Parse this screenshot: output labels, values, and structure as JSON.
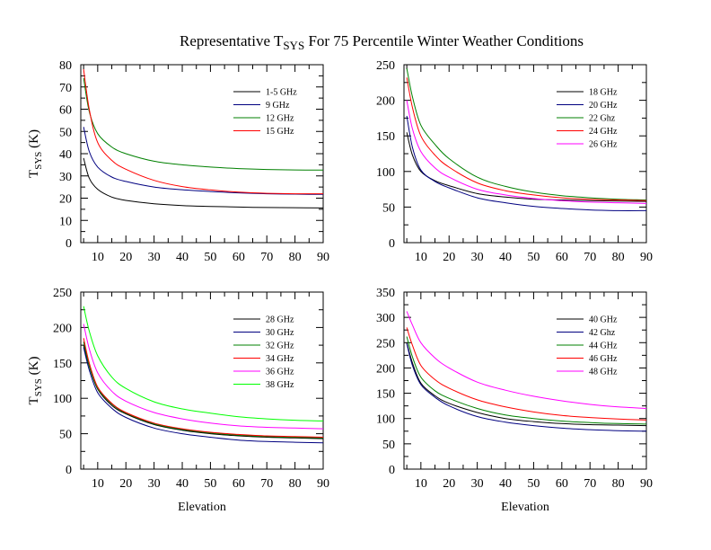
{
  "title": {
    "main": "Representative T",
    "sub": "SYS",
    "rest": " For 75 Percentile Winter Weather Conditions"
  },
  "chart_data": [
    {
      "type": "line",
      "ylabel": {
        "main": "T",
        "sub": "SYS",
        "rest": " (K)"
      },
      "xlabel": "",
      "xlim": [
        4,
        90
      ],
      "ylim": [
        0,
        80
      ],
      "xticks": [
        10,
        20,
        30,
        40,
        50,
        60,
        70,
        80,
        90
      ],
      "yticks": [
        0,
        10,
        20,
        30,
        40,
        50,
        60,
        70,
        80
      ],
      "legend_position": "top-right",
      "series": [
        {
          "name": "1-5 GHz",
          "color": "#000000",
          "x": [
            5,
            7,
            10,
            15,
            20,
            30,
            40,
            50,
            60,
            70,
            80,
            90
          ],
          "values": [
            38,
            29,
            24,
            20.5,
            19,
            17.5,
            16.7,
            16.3,
            16,
            15.8,
            15.7,
            15.6
          ]
        },
        {
          "name": "9 GHz",
          "color": "#000080",
          "x": [
            5,
            7,
            10,
            15,
            20,
            30,
            40,
            50,
            60,
            70,
            80,
            90
          ],
          "values": [
            52,
            41,
            34,
            29.5,
            27.5,
            25,
            23.8,
            23,
            22.4,
            22,
            21.8,
            21.7
          ]
        },
        {
          "name": "12 GHz",
          "color": "#008000",
          "x": [
            5,
            7,
            10,
            15,
            20,
            30,
            40,
            50,
            60,
            70,
            80,
            90
          ],
          "values": [
            74,
            59,
            49,
            43,
            40,
            36.6,
            35,
            34,
            33.3,
            32.9,
            32.7,
            32.6
          ]
        },
        {
          "name": "15 GHz",
          "color": "#ff0000",
          "x": [
            5,
            7,
            10,
            15,
            20,
            30,
            40,
            50,
            60,
            70,
            80,
            90
          ],
          "values": [
            78,
            60,
            45,
            37,
            33,
            28,
            25.2,
            23.7,
            22.7,
            22.2,
            22,
            22
          ]
        }
      ]
    },
    {
      "type": "line",
      "ylabel": {
        "main": "",
        "sub": "",
        "rest": ""
      },
      "xlabel": "",
      "xlim": [
        4,
        90
      ],
      "ylim": [
        0,
        250
      ],
      "xticks": [
        10,
        20,
        30,
        40,
        50,
        60,
        70,
        80,
        90
      ],
      "yticks": [
        0,
        50,
        100,
        150,
        200,
        250
      ],
      "legend_position": "top-right",
      "series": [
        {
          "name": "18 GHz",
          "color": "#000000",
          "x": [
            5,
            7,
            10,
            15,
            20,
            30,
            40,
            50,
            60,
            70,
            80,
            90
          ],
          "values": [
            155,
            123,
            100,
            87,
            80,
            69,
            64,
            61,
            60,
            59,
            58.5,
            58
          ]
        },
        {
          "name": "20 GHz",
          "color": "#000080",
          "x": [
            5,
            7,
            10,
            15,
            20,
            30,
            40,
            50,
            60,
            70,
            80,
            90
          ],
          "values": [
            178,
            134,
            102,
            86,
            77,
            63,
            56,
            51,
            48,
            46,
            45,
            45
          ]
        },
        {
          "name": "22 Ghz",
          "color": "#008000",
          "x": [
            5,
            7,
            10,
            15,
            20,
            30,
            40,
            50,
            60,
            70,
            80,
            90
          ],
          "values": [
            245,
            205,
            165,
            138,
            118,
            92,
            79,
            71,
            66,
            63,
            61,
            60
          ]
        },
        {
          "name": "24 GHz",
          "color": "#ff0000",
          "x": [
            5,
            7,
            10,
            15,
            20,
            30,
            40,
            50,
            60,
            70,
            80,
            90
          ],
          "values": [
            232,
            190,
            150,
            123,
            106,
            84,
            73,
            67,
            63,
            61,
            60,
            59
          ]
        },
        {
          "name": "26 GHz",
          "color": "#ff00ff",
          "x": [
            5,
            7,
            10,
            15,
            20,
            30,
            40,
            50,
            60,
            70,
            80,
            90
          ],
          "values": [
            200,
            160,
            128,
            105,
            92,
            75,
            67,
            62,
            59,
            57,
            56,
            55
          ]
        }
      ]
    },
    {
      "type": "line",
      "ylabel": {
        "main": "T",
        "sub": "SYS",
        "rest": " (K)"
      },
      "xlabel": "Elevation",
      "xlim": [
        4,
        90
      ],
      "ylim": [
        0,
        250
      ],
      "xticks": [
        10,
        20,
        30,
        40,
        50,
        60,
        70,
        80,
        90
      ],
      "yticks": [
        0,
        50,
        100,
        150,
        200,
        250
      ],
      "legend_position": "top-right",
      "series": [
        {
          "name": "28 GHz",
          "color": "#000000",
          "x": [
            5,
            7,
            10,
            15,
            20,
            30,
            40,
            50,
            60,
            70,
            80,
            90
          ],
          "values": [
            175,
            145,
            113,
            90,
            78,
            63,
            55,
            50,
            47,
            45,
            44,
            43
          ]
        },
        {
          "name": "30 GHz",
          "color": "#000080",
          "x": [
            5,
            7,
            10,
            15,
            20,
            30,
            40,
            50,
            60,
            70,
            80,
            90
          ],
          "values": [
            172,
            140,
            108,
            86,
            73,
            58,
            50,
            45,
            41,
            39,
            38,
            37
          ]
        },
        {
          "name": "32 GHz",
          "color": "#008000",
          "x": [
            5,
            7,
            10,
            15,
            20,
            30,
            40,
            50,
            60,
            70,
            80,
            90
          ],
          "values": [
            180,
            146,
            114,
            92,
            79,
            64,
            56,
            51,
            48,
            46,
            45,
            44
          ]
        },
        {
          "name": "34 GHz",
          "color": "#ff0000",
          "x": [
            5,
            7,
            10,
            15,
            20,
            30,
            40,
            50,
            60,
            70,
            80,
            90
          ],
          "values": [
            185,
            150,
            116,
            93,
            80,
            65,
            57,
            52,
            49,
            47,
            46,
            45
          ]
        },
        {
          "name": "36 GHz",
          "color": "#ff00ff",
          "x": [
            5,
            7,
            10,
            15,
            20,
            30,
            40,
            50,
            60,
            70,
            80,
            90
          ],
          "values": [
            205,
            170,
            136,
            110,
            96,
            80,
            71,
            65,
            61,
            59,
            58,
            57
          ]
        },
        {
          "name": "38 GHz",
          "color": "#00ff00",
          "x": [
            5,
            7,
            10,
            15,
            20,
            30,
            40,
            50,
            60,
            70,
            80,
            90
          ],
          "values": [
            230,
            195,
            160,
            130,
            114,
            95,
            85,
            79,
            74,
            71,
            69,
            68
          ]
        }
      ]
    },
    {
      "type": "line",
      "ylabel": {
        "main": "",
        "sub": "",
        "rest": ""
      },
      "xlabel": "Elevation",
      "xlim": [
        4,
        90
      ],
      "ylim": [
        0,
        350
      ],
      "xticks": [
        10,
        20,
        30,
        40,
        50,
        60,
        70,
        80,
        90
      ],
      "yticks": [
        0,
        50,
        100,
        150,
        200,
        250,
        300,
        350
      ],
      "legend_position": "top-right",
      "series": [
        {
          "name": "40 GHz",
          "color": "#000000",
          "x": [
            5,
            7,
            10,
            15,
            20,
            30,
            40,
            50,
            60,
            70,
            80,
            90
          ],
          "values": [
            250,
            210,
            170,
            145,
            130,
            112,
            100,
            94,
            90,
            88,
            87,
            86
          ]
        },
        {
          "name": "42 Ghz",
          "color": "#000080",
          "x": [
            5,
            7,
            10,
            15,
            20,
            30,
            40,
            50,
            60,
            70,
            80,
            90
          ],
          "values": [
            248,
            205,
            167,
            142,
            125,
            104,
            93,
            86,
            81,
            78,
            76,
            75
          ]
        },
        {
          "name": "44 GHz",
          "color": "#008000",
          "x": [
            5,
            7,
            10,
            15,
            20,
            30,
            40,
            50,
            60,
            70,
            80,
            90
          ],
          "values": [
            262,
            222,
            182,
            155,
            140,
            120,
            107,
            100,
            95,
            92,
            90,
            89
          ]
        },
        {
          "name": "46 GHz",
          "color": "#ff0000",
          "x": [
            5,
            7,
            10,
            15,
            20,
            30,
            40,
            50,
            60,
            70,
            80,
            90
          ],
          "values": [
            280,
            245,
            205,
            177,
            160,
            137,
            123,
            113,
            106,
            102,
            99,
            97
          ]
        },
        {
          "name": "48 GHz",
          "color": "#ff00ff",
          "x": [
            5,
            7,
            10,
            15,
            20,
            30,
            40,
            50,
            60,
            70,
            80,
            90
          ],
          "values": [
            312,
            285,
            250,
            220,
            200,
            172,
            156,
            144,
            135,
            128,
            123,
            120
          ]
        }
      ]
    }
  ]
}
